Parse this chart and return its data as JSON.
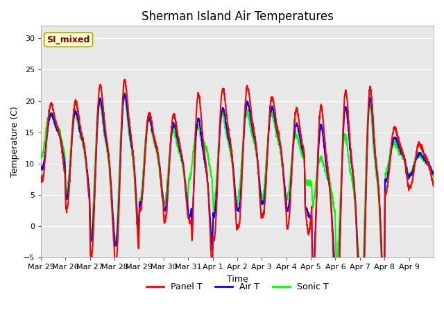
{
  "title": "Sherman Island Air Temperatures",
  "xlabel": "Time",
  "ylabel": "Temperature (C)",
  "ylim": [
    -5,
    32
  ],
  "yticks": [
    -5,
    0,
    5,
    10,
    15,
    20,
    25,
    30
  ],
  "legend_entries": [
    "Panel T",
    "Air T",
    "Sonic T"
  ],
  "annotation_text": "SI_mixed",
  "annotation_color": "#8b0000",
  "annotation_bg": "#ffffcc",
  "annotation_border": "#aaaa00",
  "line_width": 1.5,
  "xtick_labels": [
    "Mar 25",
    "Mar 26",
    "Mar 27",
    "Mar 28",
    "Mar 29",
    "Mar 30",
    "Mar 31",
    "Apr 1",
    "Apr 2",
    "Apr 3",
    "Apr 4",
    "Apr 5",
    "Apr 6",
    "Apr 7",
    "Apr 8",
    "Apr 9"
  ],
  "num_days": 16,
  "facecolor": "#ffffff",
  "axes_facecolor": "#e8e8e8",
  "grid_color": "#d0d0d0",
  "tick_fontsize": 8,
  "title_fontsize": 12,
  "label_fontsize": 9
}
